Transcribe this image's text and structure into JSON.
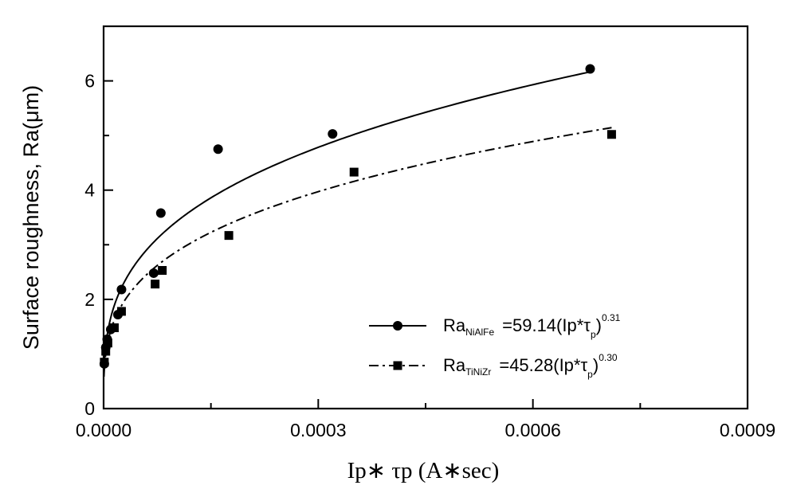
{
  "chart_data": {
    "type": "scatter",
    "title": "",
    "xlabel": "Ip∗ τp (A∗sec)",
    "ylabel": "Surface roughness, Ra(μm)",
    "xlim": [
      0,
      0.0009
    ],
    "ylim": [
      0,
      7
    ],
    "x_ticks": [
      "0.0000",
      "0.0003",
      "0.0006",
      "0.0009"
    ],
    "y_ticks": [
      "0",
      "2",
      "4",
      "6"
    ],
    "grid": false,
    "legend_position": "bottom-right",
    "series": [
      {
        "name": "NiAlFe",
        "label_main": "Ra",
        "label_sub": "NiAlFe",
        "label_eq": "=59.14(Ip*τ",
        "label_eq_sub": "p",
        "label_eq_end": ")",
        "label_exp": "0.31",
        "marker": "circle",
        "line_style": "solid",
        "coef": 59.14,
        "exponent": 0.31,
        "fit_range": [
          5e-07,
          0.00068
        ],
        "points": [
          {
            "x": 1e-06,
            "y": 0.82
          },
          {
            "x": 3e-06,
            "y": 1.12
          },
          {
            "x": 5e-06,
            "y": 1.27
          },
          {
            "x": 1e-05,
            "y": 1.45
          },
          {
            "x": 2e-05,
            "y": 1.72
          },
          {
            "x": 2.5e-05,
            "y": 2.18
          },
          {
            "x": 7e-05,
            "y": 2.48
          },
          {
            "x": 8e-05,
            "y": 3.58
          },
          {
            "x": 0.00016,
            "y": 4.75
          },
          {
            "x": 0.00032,
            "y": 5.03
          },
          {
            "x": 0.00068,
            "y": 6.22
          }
        ]
      },
      {
        "name": "TiNiZr",
        "label_main": "Ra",
        "label_sub": "TiNiZr",
        "label_eq": "=45.28(Ip*τ",
        "label_eq_sub": "p",
        "label_eq_end": ")",
        "label_exp": "0.30",
        "marker": "square",
        "line_style": "dashdot",
        "coef": 45.28,
        "exponent": 0.3,
        "fit_range": [
          5e-07,
          0.00071
        ],
        "points": [
          {
            "x": 1e-06,
            "y": 0.85
          },
          {
            "x": 3e-06,
            "y": 1.05
          },
          {
            "x": 6e-06,
            "y": 1.2
          },
          {
            "x": 1.5e-05,
            "y": 1.48
          },
          {
            "x": 2.5e-05,
            "y": 1.78
          },
          {
            "x": 7.2e-05,
            "y": 2.28
          },
          {
            "x": 8.2e-05,
            "y": 2.53
          },
          {
            "x": 0.000175,
            "y": 3.17
          },
          {
            "x": 0.00035,
            "y": 4.33
          },
          {
            "x": 0.00071,
            "y": 5.02
          }
        ]
      }
    ]
  }
}
